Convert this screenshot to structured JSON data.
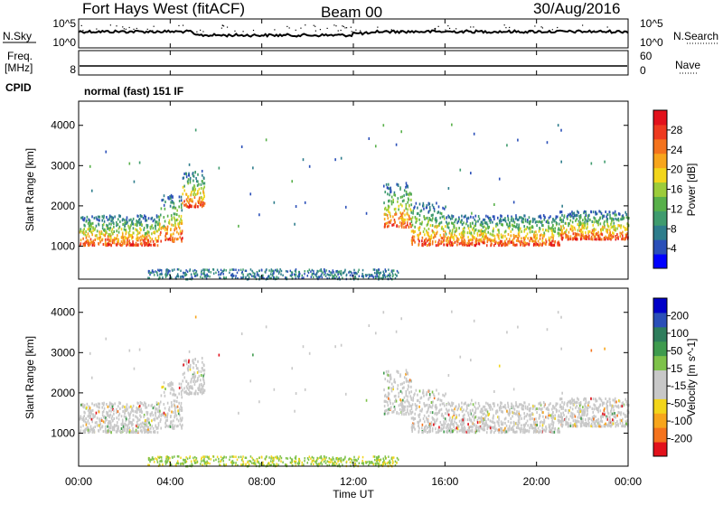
{
  "header": {
    "station": "Fort Hays West (fitACF)",
    "beam": "Beam 00",
    "date": "30/Aug/2016"
  },
  "noise_panel": {
    "left_label": "N.Sky",
    "right_label": "N.Search",
    "right_label_style": "dotted",
    "left_ticks": [
      "10^5",
      "10^0"
    ],
    "right_ticks": [
      "10^5",
      "10^0"
    ]
  },
  "freq_panel": {
    "left_label_top": "Freq.",
    "left_label_bottom": "[MHz]",
    "right_label": "Nave",
    "left_ticks": [
      "",
      "8"
    ],
    "right_ticks": [
      "60",
      "0"
    ]
  },
  "cpid": {
    "label": "CPID",
    "text": "normal (fast) 151 IF"
  },
  "colors": {
    "power": [
      "#0000ff",
      "#2a4fb8",
      "#2e7d8c",
      "#3f9b6e",
      "#58b04a",
      "#9ccc3a",
      "#f2d51b",
      "#f7a51c",
      "#f4731d",
      "#ee3a1f",
      "#e2111b"
    ],
    "velocity": [
      "#e2111b",
      "#f4731d",
      "#f7a51c",
      "#f2d51b",
      "#c8c8c8",
      "#c8c8c8",
      "#7ec24a",
      "#3f9b4e",
      "#2e7d5c",
      "#2a4fb8",
      "#0000c8"
    ]
  },
  "chart_data": [
    {
      "type": "heatmap",
      "name": "power",
      "ylabel": "Slant Range [km]",
      "xlabel": "",
      "ylim": [
        180,
        4600
      ],
      "yticks": [
        1000,
        2000,
        3000,
        4000
      ],
      "xlim": [
        0,
        24
      ],
      "xticks": [
        "00:00",
        "04:00",
        "08:00",
        "12:00",
        "16:00",
        "20:00",
        "00:00"
      ],
      "colorbar_label": "Power [dB]",
      "colorbar_ticks": [
        "4",
        "8",
        "12",
        "16",
        "20",
        "24",
        "28"
      ],
      "colorbar_range": [
        0,
        30
      ],
      "scatter_bands": [
        {
          "t_start": 0.0,
          "t_end": 3.5,
          "range_low": 1050,
          "range_high": 1800
        },
        {
          "t_start": 3.5,
          "t_end": 4.5,
          "range_low": 1150,
          "range_high": 2300
        },
        {
          "t_start": 4.5,
          "t_end": 5.5,
          "range_low": 2000,
          "range_high": 2900
        },
        {
          "t_start": 13.3,
          "t_end": 14.5,
          "range_low": 1500,
          "range_high": 2600
        },
        {
          "t_start": 14.5,
          "t_end": 16.0,
          "range_low": 1050,
          "range_high": 2100
        },
        {
          "t_start": 16.0,
          "t_end": 21.0,
          "range_low": 1050,
          "range_high": 1800
        },
        {
          "t_start": 21.0,
          "t_end": 24.0,
          "range_low": 1200,
          "range_high": 1900
        }
      ]
    },
    {
      "type": "heatmap",
      "name": "velocity",
      "ylabel": "Slant Range [km]",
      "xlabel": "Time UT",
      "ylim": [
        180,
        4600
      ],
      "yticks": [
        1000,
        2000,
        3000,
        4000
      ],
      "xlim": [
        0,
        24
      ],
      "xticks": [
        "00:00",
        "04:00",
        "08:00",
        "12:00",
        "16:00",
        "20:00",
        "00:00"
      ],
      "colorbar_label": "Velocity [m s^-1]",
      "colorbar_ticks": [
        "-200",
        "-100",
        "-50",
        "-15",
        "15",
        "50",
        "100",
        "200"
      ],
      "colorbar_range": [
        -250,
        250
      ]
    }
  ]
}
